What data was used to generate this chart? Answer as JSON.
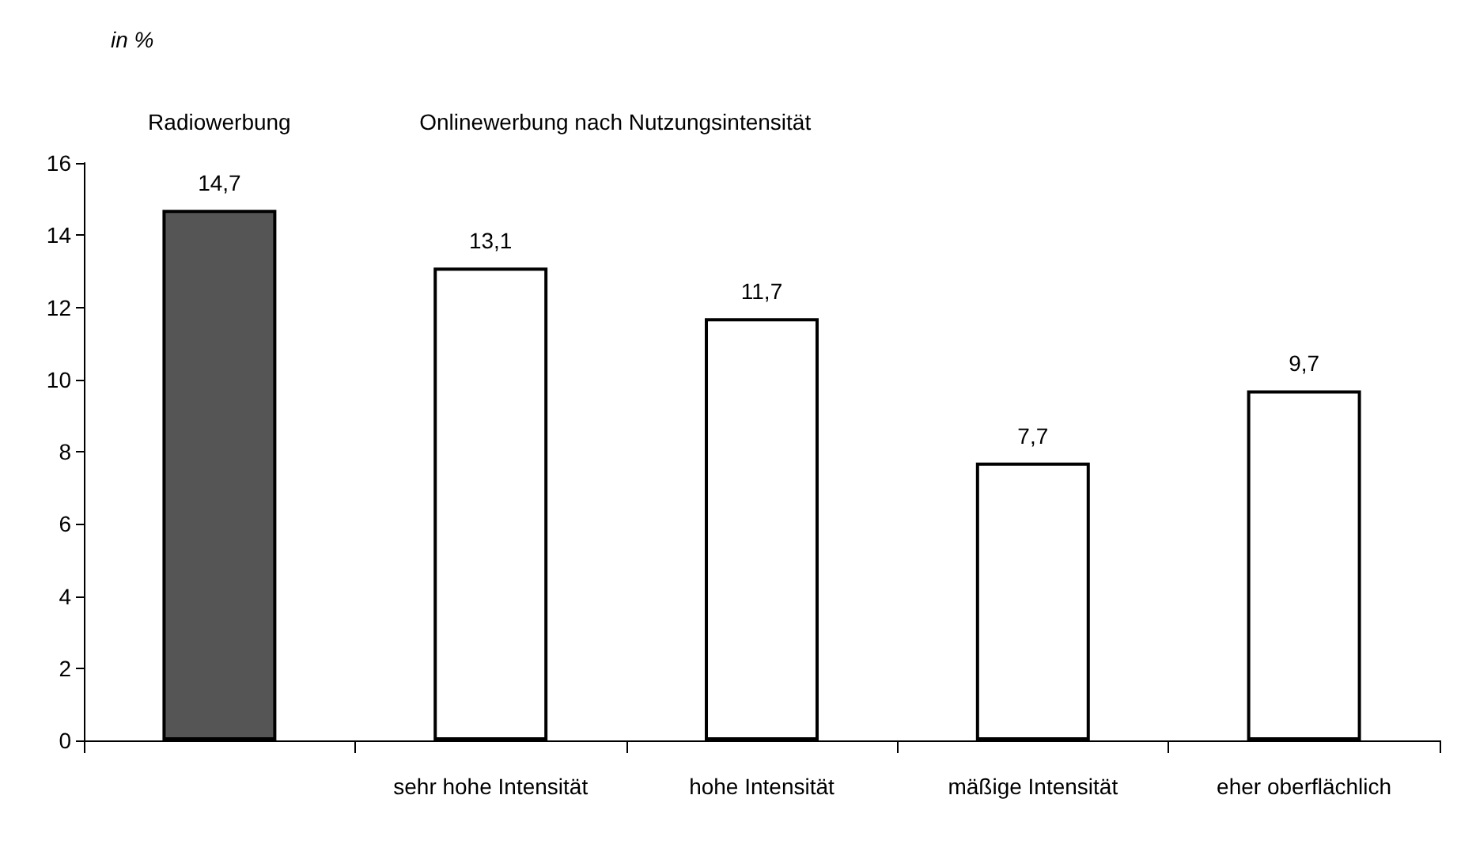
{
  "chart_data": {
    "type": "bar",
    "ylabel": "in %",
    "annotations": [
      "Radiowerbung",
      "Onlinewerbung nach Nutzungsintensität"
    ],
    "categories": [
      null,
      "sehr hohe Intensität",
      "hohe Intensität",
      "mäßige Intensität",
      "eher oberflächlich"
    ],
    "values": [
      14.7,
      13.1,
      11.7,
      7.7,
      9.7
    ],
    "value_labels": [
      "14,7",
      "13,1",
      "11,7",
      "7,7",
      "9,7"
    ],
    "colors": [
      "#555555",
      "#ffffff",
      "#ffffff",
      "#ffffff",
      "#ffffff"
    ],
    "ylim": [
      0,
      16
    ],
    "yticks": [
      0,
      2,
      4,
      6,
      8,
      10,
      12,
      14,
      16
    ],
    "grid": false
  }
}
